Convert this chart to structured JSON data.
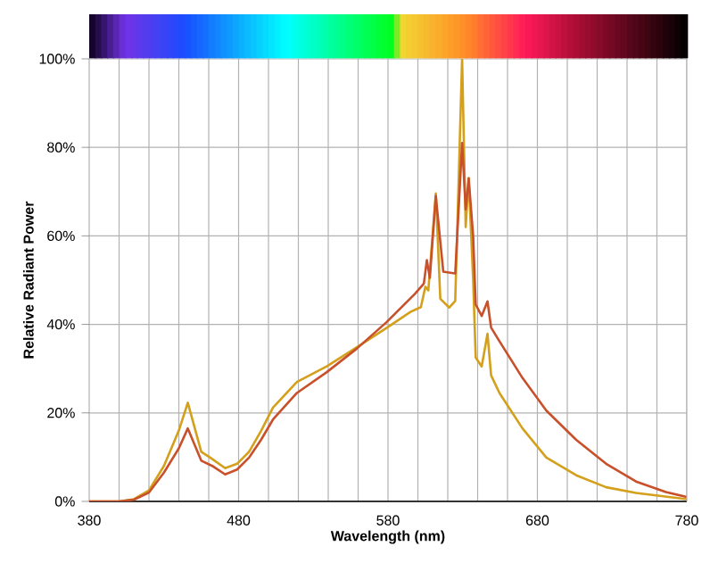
{
  "chart_data": {
    "type": "line",
    "xlabel": "Wavelength (nm)",
    "ylabel": "Relative Radiant Power",
    "xlim": [
      380,
      780
    ],
    "ylim": [
      0,
      100
    ],
    "xticks": [
      380,
      {
        "value": 400,
        "label": null
      },
      {
        "value": 420,
        "label": null
      },
      {
        "value": 440,
        "label": null
      },
      {
        "value": 460,
        "label": null
      },
      480,
      {
        "value": 500,
        "label": null
      },
      {
        "value": 520,
        "label": null
      },
      {
        "value": 540,
        "label": null
      },
      {
        "value": 560,
        "label": null
      },
      580,
      {
        "value": 600,
        "label": null
      },
      {
        "value": 620,
        "label": null
      },
      {
        "value": 640,
        "label": null
      },
      {
        "value": 660,
        "label": null
      },
      680,
      {
        "value": 700,
        "label": null
      },
      {
        "value": 720,
        "label": null
      },
      {
        "value": 740,
        "label": null
      },
      {
        "value": 760,
        "label": null
      },
      780
    ],
    "yticks": [
      {
        "value": 0,
        "label": "0%"
      },
      {
        "value": 20,
        "label": "20%"
      },
      {
        "value": 40,
        "label": "40%"
      },
      {
        "value": 60,
        "label": "60%"
      },
      {
        "value": 80,
        "label": "80%"
      },
      {
        "value": 100,
        "label": "100%"
      }
    ],
    "grid": true,
    "marker": "none",
    "line_style": "solid",
    "series": [
      {
        "color": "#d4a01c",
        "x": [
          380,
          400,
          410,
          420,
          430,
          440,
          446,
          455,
          461,
          471,
          479,
          487,
          495,
          503,
          519,
          539,
          559,
          579,
          595,
          602,
          605,
          607,
          612,
          615,
          621,
          625,
          629.6,
          632,
          634,
          637,
          638.7,
          642.7,
          646.6,
          649,
          654.6,
          670,
          686,
          706,
          726,
          746,
          780
        ],
        "values": [
          0,
          0,
          0.5,
          2.5,
          8,
          16,
          22.3,
          11.2,
          9.9,
          7.5,
          8.5,
          11.2,
          15.9,
          21.2,
          27,
          30.5,
          34.8,
          39.2,
          42.8,
          43.9,
          48.5,
          47.7,
          69.6,
          45.8,
          43.8,
          45.3,
          100,
          62,
          73,
          50,
          32.5,
          30.5,
          37.9,
          28.5,
          24.5,
          16.5,
          9.9,
          5.9,
          3.2,
          1.9,
          0.5
        ]
      },
      {
        "color": "#c8502a",
        "x": [
          380,
          400,
          410,
          420,
          430,
          440,
          446,
          455,
          463,
          471,
          479,
          487,
          495,
          503,
          519,
          539,
          559,
          579,
          598,
          604,
          606,
          608,
          612,
          617,
          625,
          629.6,
          632,
          634,
          637,
          638.7,
          642.7,
          646.6,
          649,
          654,
          670,
          686,
          706,
          726,
          746,
          766,
          780
        ],
        "values": [
          0,
          0,
          0.4,
          2,
          6.5,
          12,
          16.5,
          9.2,
          7.9,
          6.1,
          7.2,
          9.9,
          13.9,
          18.5,
          24.5,
          29.2,
          34.5,
          40.5,
          46.9,
          49.2,
          54.5,
          50.5,
          69,
          51.9,
          51.5,
          81,
          66,
          73,
          59.9,
          44.5,
          41.9,
          45.2,
          39.3,
          36.5,
          27.9,
          20.5,
          13.9,
          8.5,
          4.5,
          2.1,
          1
        ]
      }
    ]
  }
}
